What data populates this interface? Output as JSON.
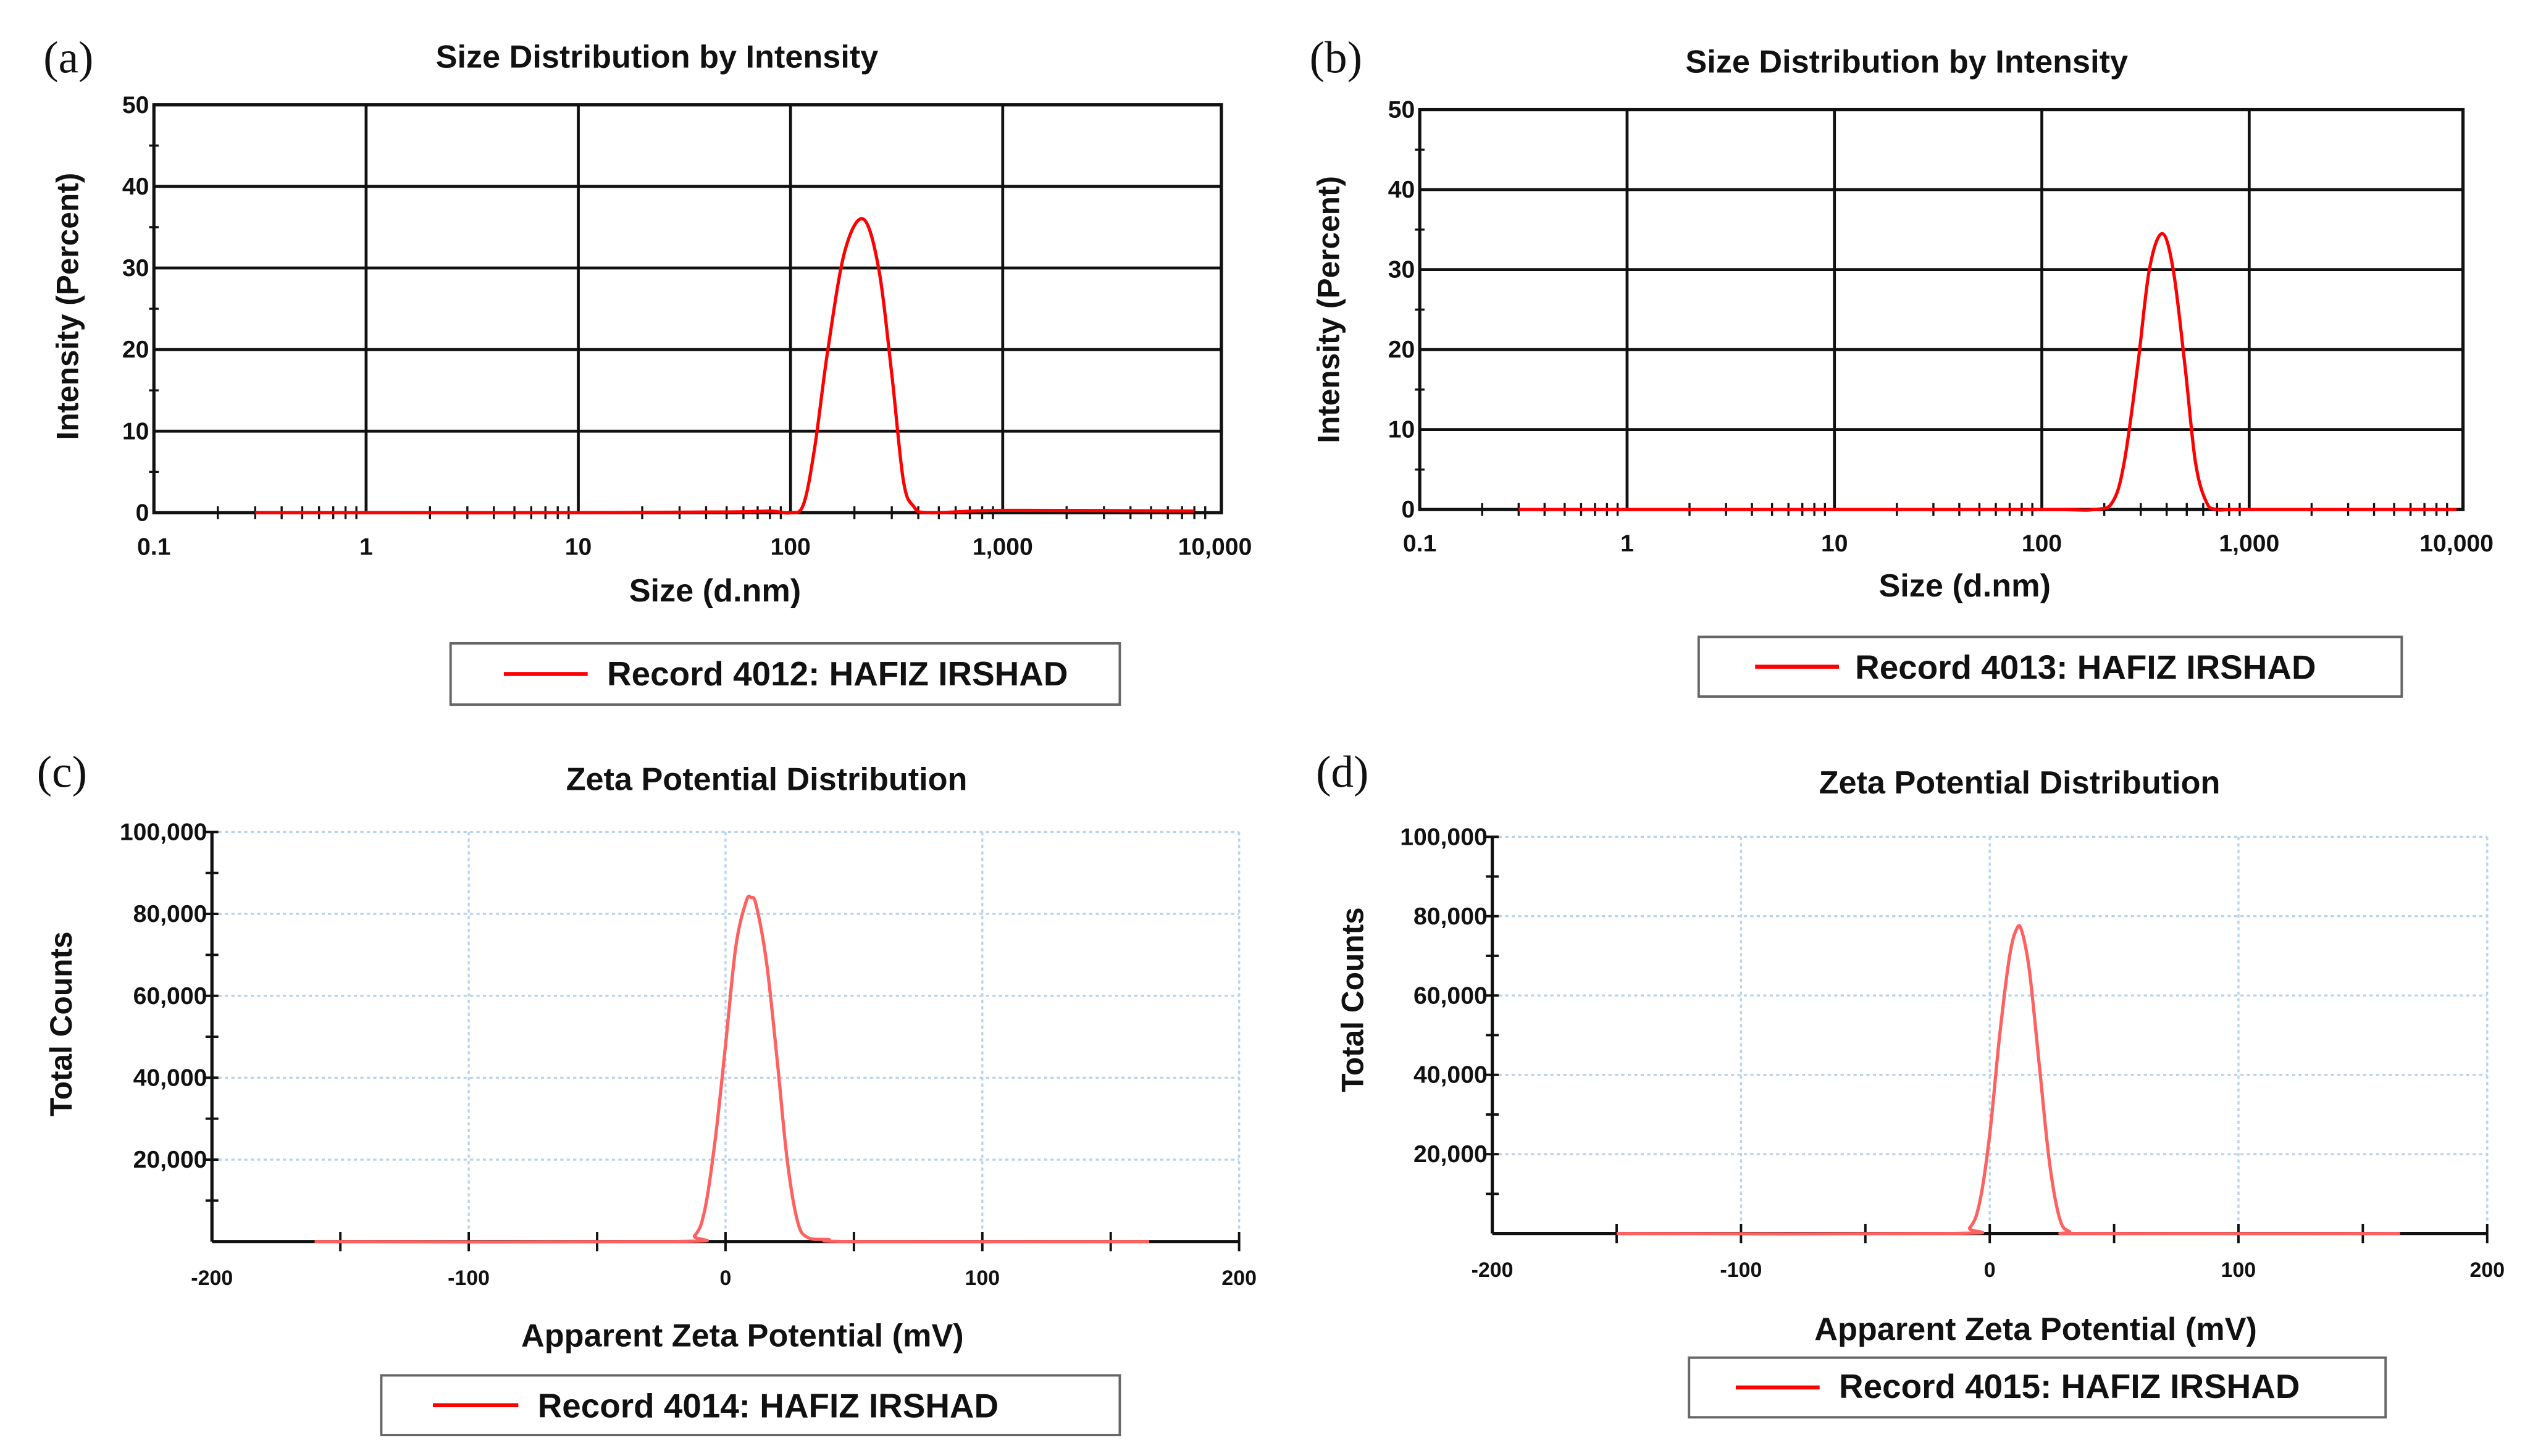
{
  "chart_data": [
    {
      "panel": "(a)",
      "type": "line",
      "title": "Size Distribution by Intensity",
      "xlabel": "Size (d.nm)",
      "ylabel": "Intensity (Percent)",
      "xscale": "log",
      "xlim": [
        0.1,
        10000
      ],
      "ylim": [
        0,
        50
      ],
      "xticks": [
        0.1,
        1,
        10,
        100,
        1000,
        10000
      ],
      "xtick_labels": [
        "0.1",
        "1",
        "10",
        "100",
        "1,000",
        "10,000"
      ],
      "yticks": [
        0,
        10,
        20,
        30,
        40,
        50
      ],
      "ytick_labels": [
        "0",
        "10",
        "20",
        "30",
        "40",
        "50"
      ],
      "grid": "solid",
      "legend": "below",
      "series": [
        {
          "name": "Record 4012: HAFIZ IRSHAD",
          "color": "#ff0000",
          "x": [
            0.3,
            1,
            10,
            50,
            80,
            100,
            115,
            130,
            150,
            180,
            220,
            260,
            300,
            340,
            380,
            450,
            1000,
            8000
          ],
          "y": [
            0,
            0,
            0,
            0.1,
            0.2,
            0,
            1,
            8,
            20,
            32,
            36,
            30,
            17,
            4,
            0.8,
            0,
            0.3,
            0.2
          ]
        }
      ]
    },
    {
      "panel": "(b)",
      "type": "line",
      "title": "Size Distribution by Intensity",
      "xlabel": "Size (d.nm)",
      "ylabel": "Intensity (Percent)",
      "xscale": "log",
      "xlim": [
        0.1,
        10000
      ],
      "ylim": [
        0,
        50
      ],
      "xticks": [
        0.1,
        1,
        10,
        100,
        1000,
        10000
      ],
      "xtick_labels": [
        "0.1",
        "1",
        "10",
        "100",
        "1,000",
        "10,000"
      ],
      "yticks": [
        0,
        10,
        20,
        30,
        40,
        50
      ],
      "ytick_labels": [
        "0",
        "10",
        "20",
        "30",
        "40",
        "50"
      ],
      "grid": "solid",
      "legend": "below",
      "series": [
        {
          "name": "Record 4013: HAFIZ IRSHAD",
          "color": "#ff0000",
          "x": [
            0.3,
            1,
            10,
            100,
            180,
            220,
            250,
            290,
            330,
            380,
            430,
            490,
            550,
            620,
            700,
            1000,
            10000
          ],
          "y": [
            0,
            0,
            0,
            0,
            0,
            1,
            6,
            18,
            30,
            34.5,
            30,
            18,
            6,
            1,
            0,
            0,
            0
          ]
        }
      ]
    },
    {
      "panel": "(c)",
      "type": "line",
      "title": "Zeta Potential Distribution",
      "xlabel": "Apparent Zeta Potential (mV)",
      "ylabel": "Total Counts",
      "xscale": "linear",
      "xlim": [
        -200,
        200
      ],
      "ylim": [
        0,
        100000
      ],
      "xticks": [
        -200,
        -100,
        0,
        100,
        200
      ],
      "xtick_labels": [
        "-200",
        "-100",
        "0",
        "100",
        "200"
      ],
      "yticks": [
        20000,
        40000,
        60000,
        80000,
        100000
      ],
      "ytick_labels": [
        "20,000",
        "40,000",
        "60,000",
        "80,000",
        "100,000"
      ],
      "grid": "dotted",
      "legend": "below",
      "series": [
        {
          "name": "Record 4014: HAFIZ IRSHAD",
          "color": "#ff6060",
          "x": [
            -160,
            -20,
            -12,
            -8,
            -4,
            0,
            4,
            8,
            10,
            12,
            16,
            20,
            24,
            28,
            32,
            40,
            50,
            165
          ],
          "y": [
            0,
            0,
            1500,
            8000,
            25000,
            48000,
            72000,
            83000,
            84000,
            82000,
            68000,
            45000,
            20000,
            5000,
            1000,
            500,
            0,
            0
          ]
        }
      ]
    },
    {
      "panel": "(d)",
      "type": "line",
      "title": "Zeta Potential Distribution",
      "xlabel": "Apparent Zeta Potential (mV)",
      "ylabel": "Total Counts",
      "xscale": "linear",
      "xlim": [
        -200,
        200
      ],
      "ylim": [
        0,
        100000
      ],
      "xticks": [
        -200,
        -100,
        0,
        100,
        200
      ],
      "xtick_labels": [
        "-200",
        "-100",
        "0",
        "100",
        "200"
      ],
      "yticks": [
        20000,
        40000,
        60000,
        80000,
        100000
      ],
      "ytick_labels": [
        "20,000",
        "40,000",
        "60,000",
        "80,000",
        "100,000"
      ],
      "grid": "dotted",
      "legend": "below",
      "series": [
        {
          "name": "Record 4015: HAFIZ IRSHAD",
          "color": "#ff6060",
          "x": [
            -150,
            -15,
            -8,
            -4,
            0,
            4,
            8,
            11,
            13,
            16,
            20,
            24,
            28,
            32,
            40,
            165
          ],
          "y": [
            0,
            0,
            1500,
            8000,
            25000,
            50000,
            70000,
            77000,
            76000,
            66000,
            42000,
            18000,
            4000,
            500,
            0,
            0
          ]
        }
      ]
    }
  ]
}
